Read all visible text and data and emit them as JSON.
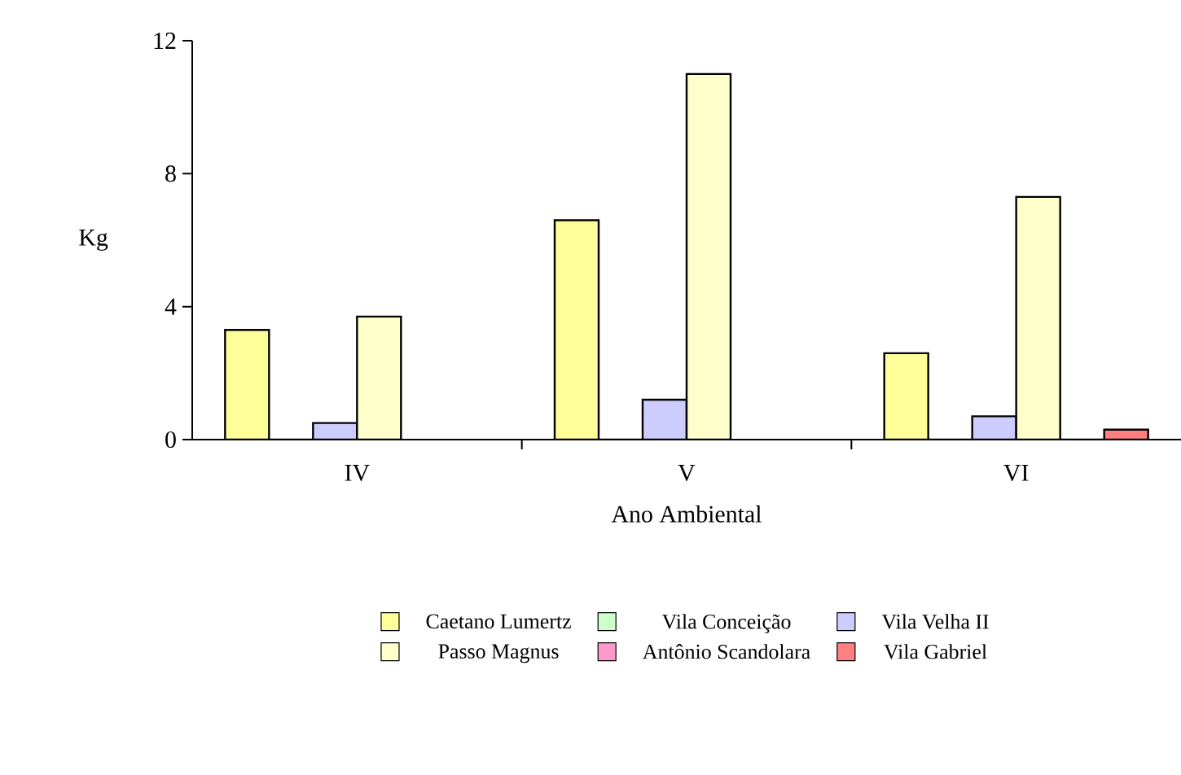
{
  "chart_data": {
    "type": "bar",
    "xlabel": "Ano Ambiental",
    "ylabel": "Kg",
    "categories": [
      "IV",
      "V",
      "VI"
    ],
    "series": [
      {
        "name": "Caetano Lumertz",
        "color": "#ffff99",
        "values": [
          3.3,
          6.6,
          2.6
        ]
      },
      {
        "name": "Vila Conceição",
        "color": "#ccffcc",
        "values": [
          0,
          0,
          0
        ]
      },
      {
        "name": "Vila Velha II",
        "color": "#ccccff",
        "values": [
          0.5,
          1.2,
          0.7
        ]
      },
      {
        "name": "Passo Magnus",
        "color": "#ffffcc",
        "values": [
          3.7,
          11.0,
          7.3
        ]
      },
      {
        "name": "Antônio Scandolara",
        "color": "#ff99cc",
        "values": [
          null,
          null,
          0
        ]
      },
      {
        "name": "Vila Gabriel",
        "color": "#ff8080",
        "values": [
          null,
          null,
          0.3
        ]
      }
    ],
    "ylim": [
      0,
      12
    ],
    "yticks": [
      0,
      4,
      8,
      12
    ],
    "grid": false,
    "legend": "bottom"
  }
}
